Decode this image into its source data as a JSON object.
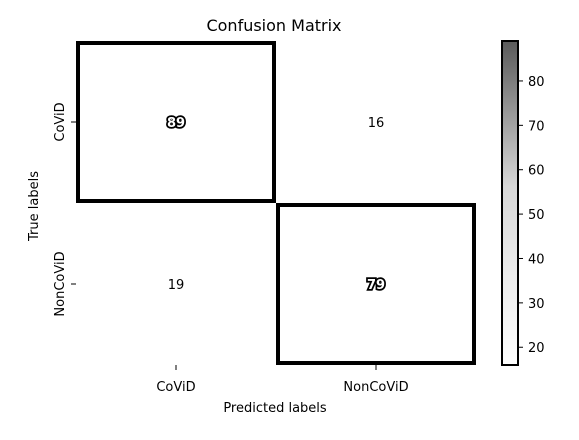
{
  "chart_data": {
    "type": "heatmap",
    "title": "Confusion Matrix",
    "xlabel": "Predicted labels",
    "ylabel": "True labels",
    "x_categories": [
      "CoViD",
      "NonCoViD"
    ],
    "y_categories": [
      "CoViD",
      "NonCoViD"
    ],
    "values": [
      [
        89,
        16
      ],
      [
        19,
        79
      ]
    ],
    "highlighted_cells": [
      [
        0,
        0
      ],
      [
        1,
        1
      ]
    ],
    "colorbar": {
      "range": [
        16,
        89
      ],
      "ticks": [
        20,
        30,
        40,
        50,
        60,
        70,
        80
      ],
      "colormap": "white-to-black"
    },
    "colors": {
      "text": "#000000",
      "background": "#ffffff"
    }
  }
}
